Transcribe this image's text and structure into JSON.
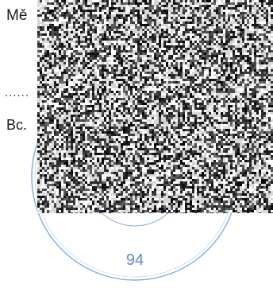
{
  "document": {
    "title_fragment": "Mě",
    "dotted_fragment": "......",
    "signature_fragment": "Bc."
  },
  "stamp": {
    "number": "94",
    "ink_color": "#5a8fd1"
  },
  "noise_overlay": {
    "description_color": "#222222"
  }
}
